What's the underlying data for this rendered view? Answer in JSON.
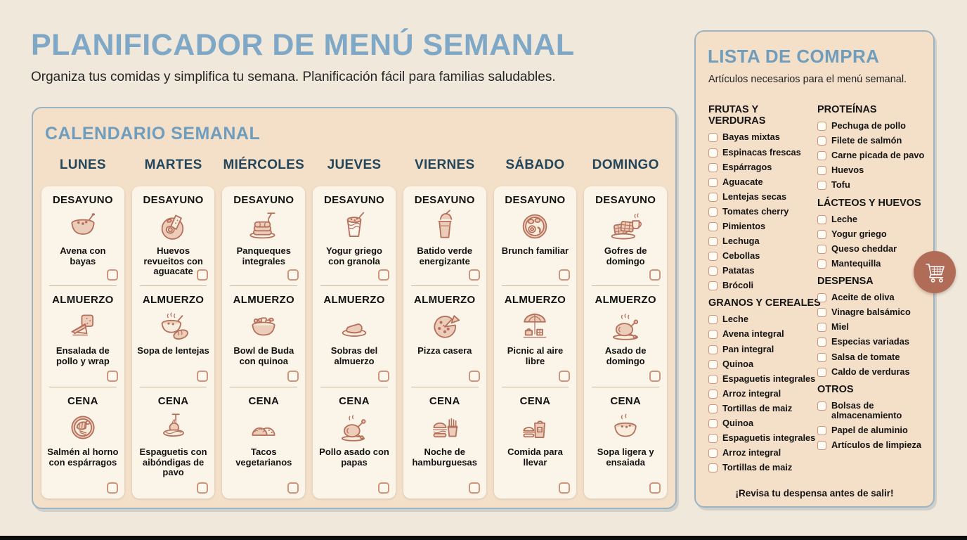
{
  "page": {
    "title": "PLANIFICADOR DE MENÚ SEMANAL",
    "subtitle": "Organiza tus comidas y simplifica tu semana. Planificación fácil para familias saludables."
  },
  "calendar": {
    "title": "CALENDARIO SEMANAL",
    "days": [
      {
        "name": "LUNES",
        "meals": [
          {
            "type": "DESAYUNO",
            "name": "Avena con bayas",
            "icon": "oatmeal-bowl-icon"
          },
          {
            "type": "ALMUERZO",
            "name": "Ensalada de pollo y wrap",
            "icon": "sandwich-wrap-icon"
          },
          {
            "type": "CENA",
            "name": "Salmén al horno con espárragos",
            "icon": "salmon-plate-icon"
          }
        ]
      },
      {
        "name": "MARTES",
        "meals": [
          {
            "type": "DESAYUNO",
            "name": "Huevos revueitos con aguacate",
            "icon": "eggs-toast-icon"
          },
          {
            "type": "ALMUERZO",
            "name": "Sopa de lentejas",
            "icon": "soup-bread-icon"
          },
          {
            "type": "CENA",
            "name": "Espaguetis con aibóndigas de pavo",
            "icon": "spaghetti-icon"
          }
        ]
      },
      {
        "name": "MIÉRCOLES",
        "meals": [
          {
            "type": "DESAYUNO",
            "name": "Panqueques integrales",
            "icon": "pancakes-icon"
          },
          {
            "type": "ALMUERZO",
            "name": "Bowl de Buda con quinoa",
            "icon": "buddha-bowl-icon"
          },
          {
            "type": "CENA",
            "name": "Tacos vegetarianos",
            "icon": "tacos-icon"
          }
        ]
      },
      {
        "name": "JUEVES",
        "meals": [
          {
            "type": "DESAYUNO",
            "name": "Yogur griego con granola",
            "icon": "yogurt-cup-icon"
          },
          {
            "type": "ALMUERZO",
            "name": "Sobras del almuerzo",
            "icon": "leftovers-plate-icon"
          },
          {
            "type": "CENA",
            "name": "Pollo asado con papas",
            "icon": "roast-chicken-icon"
          }
        ]
      },
      {
        "name": "VIERNES",
        "meals": [
          {
            "type": "DESAYUNO",
            "name": "Batido verde energizante",
            "icon": "smoothie-icon"
          },
          {
            "type": "ALMUERZO",
            "name": "Pizza casera",
            "icon": "pizza-icon"
          },
          {
            "type": "CENA",
            "name": "Noche de hamburguesas",
            "icon": "burger-fries-icon"
          }
        ]
      },
      {
        "name": "SÁBADO",
        "meals": [
          {
            "type": "DESAYUNO",
            "name": "Brunch familiar",
            "icon": "brunch-plate-icon"
          },
          {
            "type": "ALMUERZO",
            "name": "Picnic al aire libre",
            "icon": "picnic-icon"
          },
          {
            "type": "CENA",
            "name": "Comida para llevar",
            "icon": "takeout-bag-icon"
          }
        ]
      },
      {
        "name": "DOMINGO",
        "meals": [
          {
            "type": "DESAYUNO",
            "name": "Gofres de domingo",
            "icon": "waffles-coffee-icon"
          },
          {
            "type": "ALMUERZO",
            "name": "Asado de domingo",
            "icon": "roast-turkey-icon"
          },
          {
            "type": "CENA",
            "name": "Sopa ligera y ensaiada",
            "icon": "soup-bowl-icon"
          }
        ]
      }
    ]
  },
  "shopping": {
    "title": "LISTA DE COMPRA",
    "subtitle": "Artículos necesarios para el menú semanal.",
    "footer": "¡Revisa tu despensa antes de salir!",
    "cart_icon": "shopping-cart-icon",
    "columns": [
      {
        "sections": [
          {
            "header": "FRUTAS Y VERDURAS",
            "items": [
              "Bayas mixtas",
              "Espinacas frescas",
              "Espárragos",
              "Aguacate",
              "Lentejas secas",
              "Tomates cherry",
              "Pimientos",
              "Lechuga",
              "Cebollas",
              "Patatas",
              "Brócoli"
            ]
          },
          {
            "header": "GRANOS Y CEREALES",
            "items": [
              "Leche",
              "Avena integral",
              "Pan integral",
              "Quinoa",
              "Espaguetis integrales",
              "Arroz integral",
              "Tortillas de maiz",
              "Quinoa",
              "Espaguetis integrales",
              "Arroz integral",
              "Tortillas de maiz"
            ]
          }
        ]
      },
      {
        "sections": [
          {
            "header": "PROTEÍNAS",
            "items": [
              "Pechuga de pollo",
              "Filete de salmón",
              "Carne picada de pavo",
              "Huevos",
              "Tofu"
            ]
          },
          {
            "header": "LÁCTEOS Y HUEVOS",
            "items": [
              "Leche",
              "Yogur griego",
              "Queso cheddar",
              "Mantequilla"
            ]
          },
          {
            "header": "DESPENSA",
            "items": [
              "Aceite de oliva",
              "Vinagre balsámico",
              "Miel",
              "Especias variadas",
              "Salsa de tomate",
              "Caldo de verduras"
            ]
          },
          {
            "header": "OTROS",
            "items": [
              "Bolsas de almacenamiento",
              "Papel de aluminio",
              "Artículos de limpieza"
            ]
          }
        ]
      }
    ]
  },
  "colors": {
    "background": "#efe8db",
    "title_blue": "#7fa7c6",
    "panel_tan": "#f4dfc8",
    "panel_border": "#9cb4c2",
    "navy": "#24465a",
    "card_cream": "#fbf5e9",
    "terracotta": "#b5705c",
    "checkbox_border": "#cf9479",
    "cart_badge": "#b16c58"
  }
}
